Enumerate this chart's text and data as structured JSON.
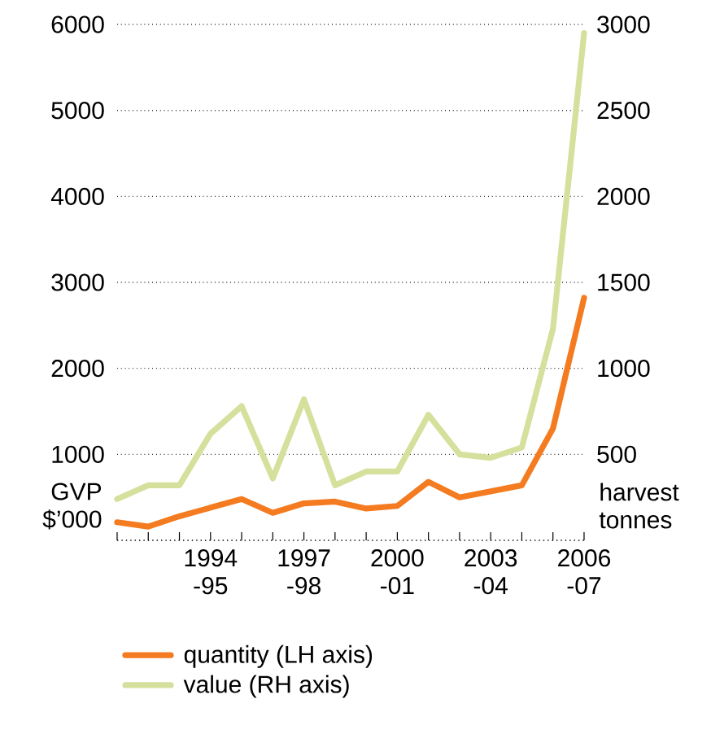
{
  "chart_data": {
    "type": "line",
    "categories": [
      null,
      null,
      null,
      "1994 -95",
      null,
      null,
      "1997 -98",
      null,
      null,
      "2000 -01",
      null,
      null,
      "2003 -04",
      null,
      null,
      "2006 -07"
    ],
    "ylabel": "GVP $’000",
    "y2label": "harvest tonnes",
    "ylim": [
      0,
      6000
    ],
    "yticks": [
      1000,
      2000,
      3000,
      4000,
      5000,
      6000
    ],
    "y2lim": [
      0,
      3000
    ],
    "y2ticks": [
      500,
      1000,
      1500,
      2000,
      2500,
      3000
    ],
    "grid": "y",
    "legend": "bottom",
    "marker": "none",
    "line_style": "solid",
    "series": [
      {
        "name": "quantity (LH axis)",
        "color": "#f47b20",
        "values": [
          210,
          160,
          280,
          380,
          480,
          320,
          430,
          450,
          370,
          400,
          680,
          500,
          570,
          640,
          1300,
          2820
        ]
      },
      {
        "name": "value (RH axis)",
        "color": "#d4e09b",
        "axis": "y2",
        "values": [
          240,
          320,
          320,
          620,
          780,
          360,
          820,
          320,
          400,
          400,
          730,
          500,
          480,
          540,
          1230,
          2950
        ]
      }
    ]
  }
}
